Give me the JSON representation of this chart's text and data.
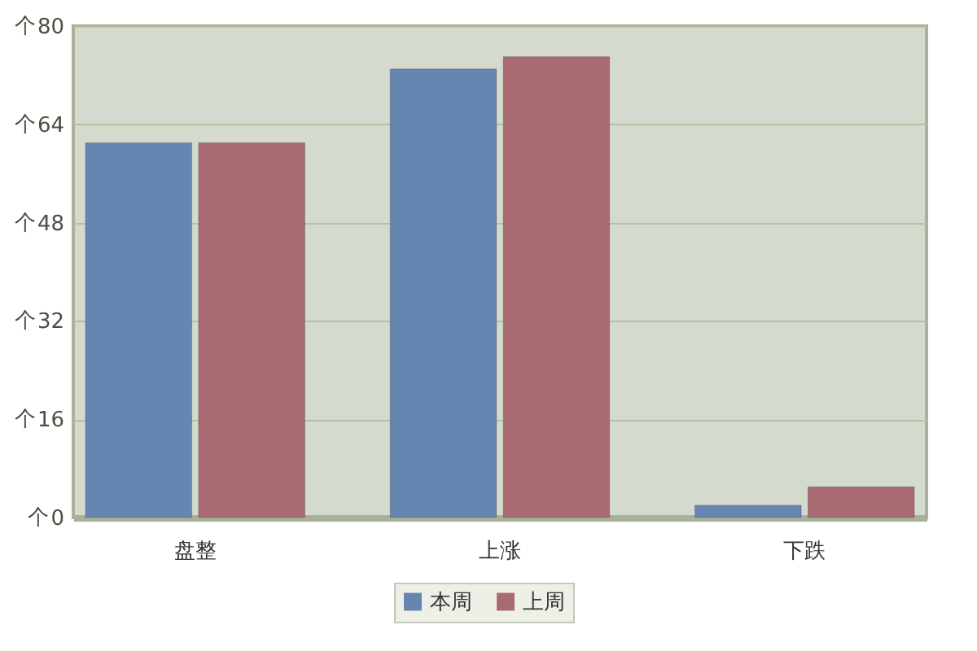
{
  "chart_data": {
    "type": "bar",
    "categories": [
      "盘整",
      "上涨",
      "下跌"
    ],
    "series": [
      {
        "name": "本周",
        "color": "#6686b2",
        "values": [
          61,
          73,
          2
        ]
      },
      {
        "name": "上周",
        "color": "#a96a71",
        "values": [
          61,
          75,
          5
        ]
      }
    ],
    "ylabel": "个",
    "ylim": [
      0,
      80
    ],
    "yticks": [
      0,
      16,
      32,
      48,
      64,
      80
    ],
    "grid": "y",
    "legend": "bottom"
  }
}
